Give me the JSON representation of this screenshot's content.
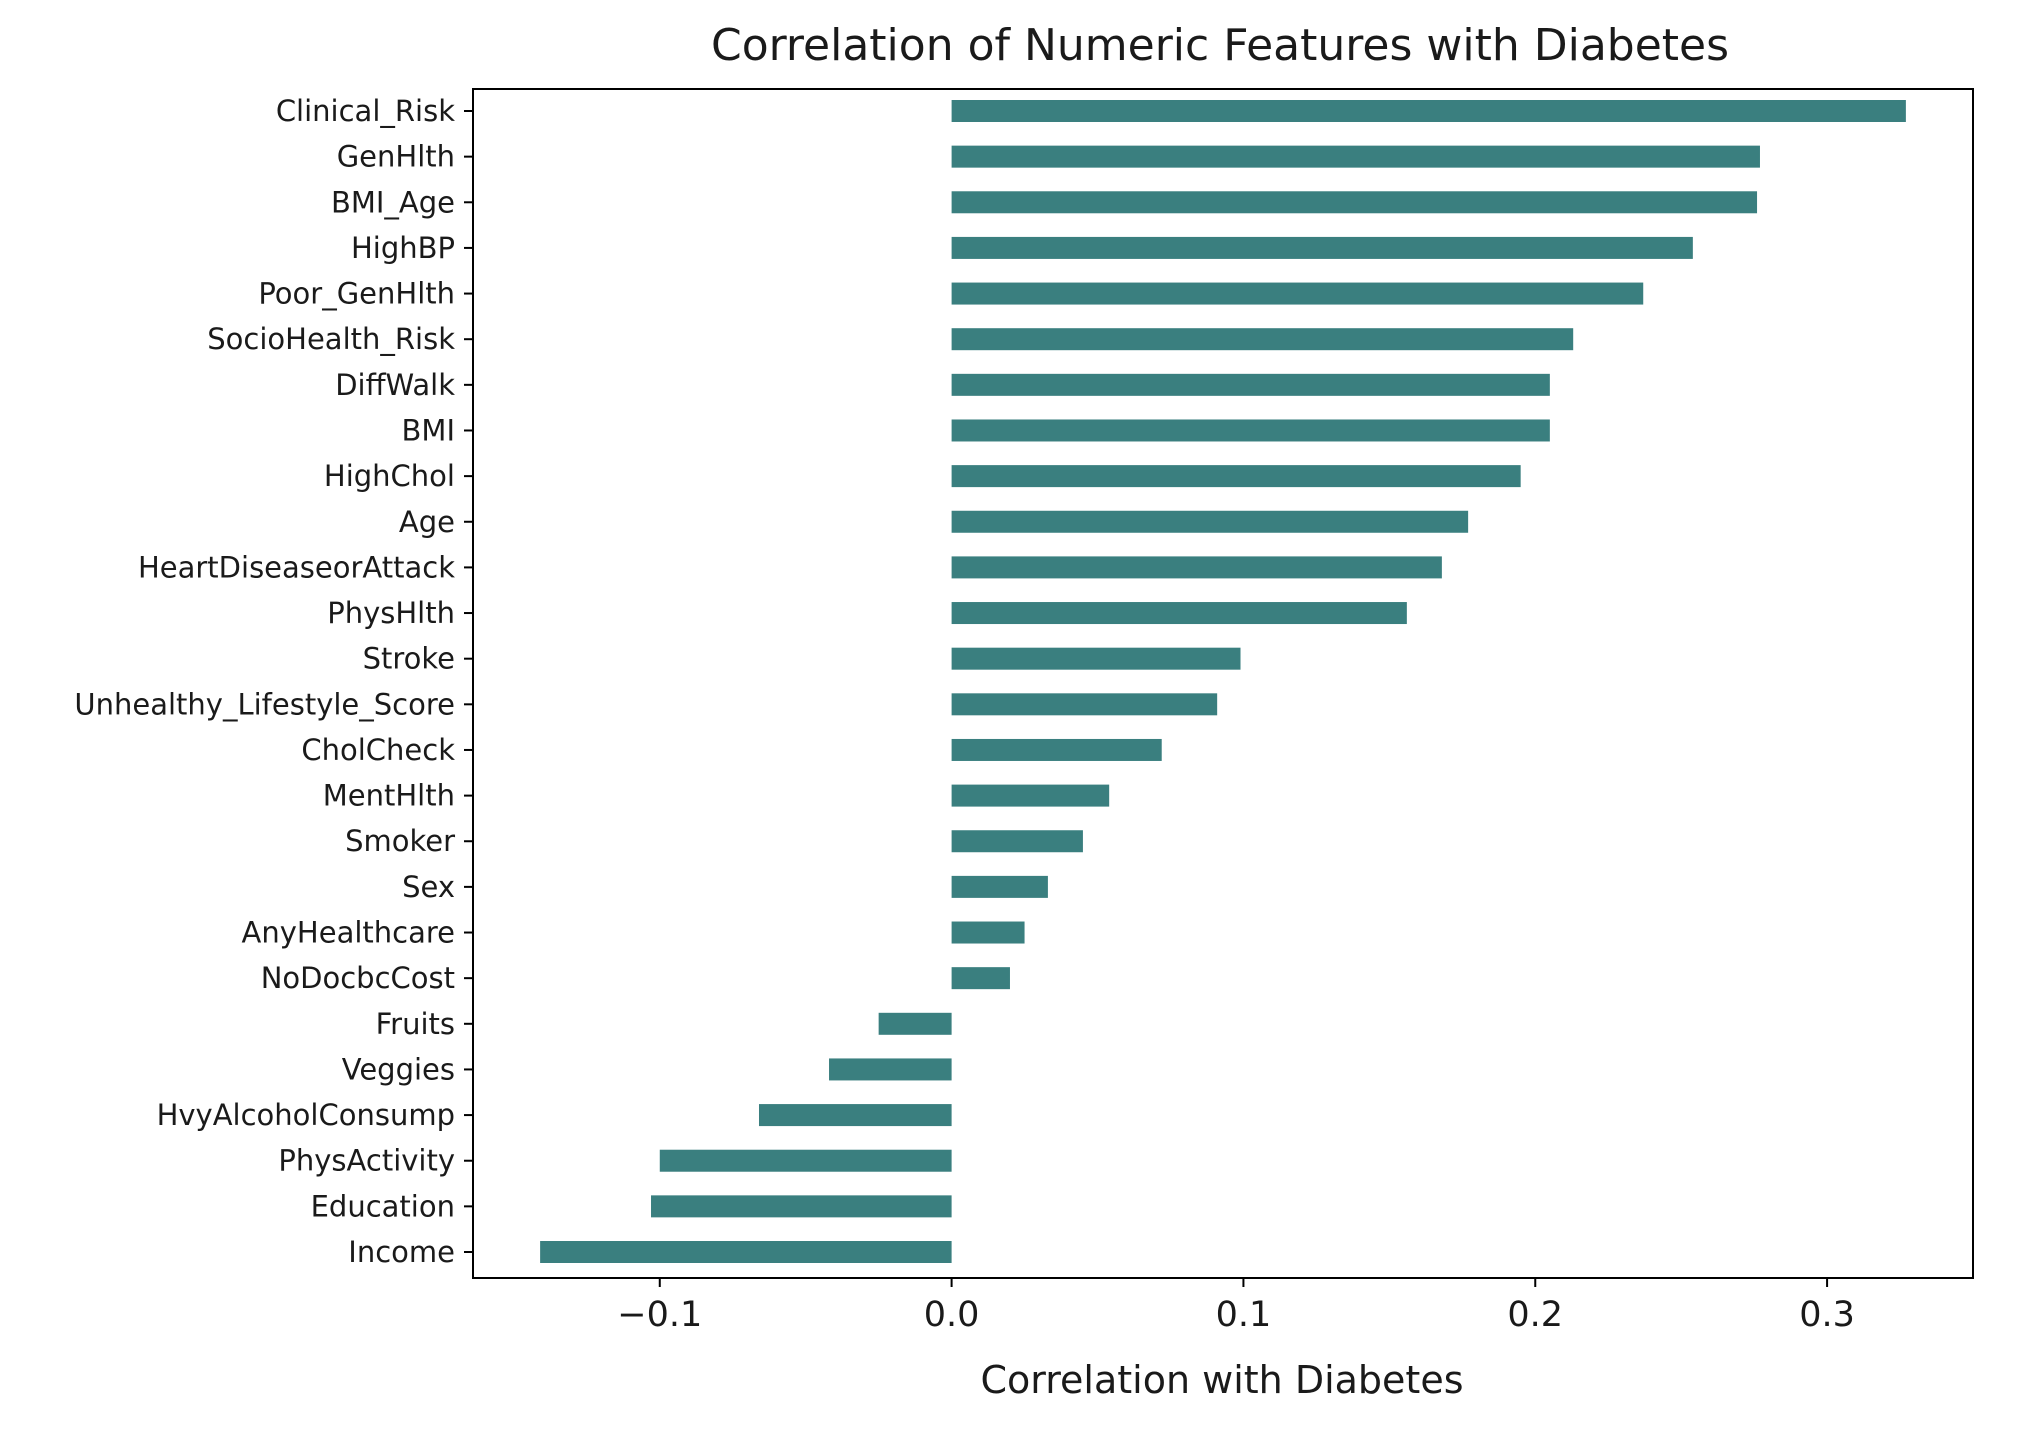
{
  "chart_data": {
    "type": "bar",
    "orientation": "horizontal",
    "title": "Correlation of Numeric Features with Diabetes",
    "xlabel": "Correlation with Diabetes",
    "ylabel": "",
    "xlim": [
      -0.164,
      0.35
    ],
    "xticks": [
      {
        "value": -0.1,
        "label": "−0.1"
      },
      {
        "value": 0.0,
        "label": "0.0"
      },
      {
        "value": 0.1,
        "label": "0.1"
      },
      {
        "value": 0.2,
        "label": "0.2"
      },
      {
        "value": 0.3,
        "label": "0.3"
      }
    ],
    "bar_color": "#3a7f7f",
    "grid": false,
    "legend": "none",
    "categories": [
      "Clinical_Risk",
      "GenHlth",
      "BMI_Age",
      "HighBP",
      "Poor_GenHlth",
      "SocioHealth_Risk",
      "DiffWalk",
      "BMI",
      "HighChol",
      "Age",
      "HeartDiseaseorAttack",
      "PhysHlth",
      "Stroke",
      "Unhealthy_Lifestyle_Score",
      "CholCheck",
      "MentHlth",
      "Smoker",
      "Sex",
      "AnyHealthcare",
      "NoDocbcCost",
      "Fruits",
      "Veggies",
      "HvyAlcoholConsump",
      "PhysActivity",
      "Education",
      "Income"
    ],
    "values": [
      0.327,
      0.277,
      0.276,
      0.254,
      0.237,
      0.213,
      0.205,
      0.205,
      0.195,
      0.177,
      0.168,
      0.156,
      0.099,
      0.091,
      0.072,
      0.054,
      0.045,
      0.033,
      0.025,
      0.02,
      -0.025,
      -0.042,
      -0.066,
      -0.1,
      -0.103,
      -0.141
    ]
  }
}
